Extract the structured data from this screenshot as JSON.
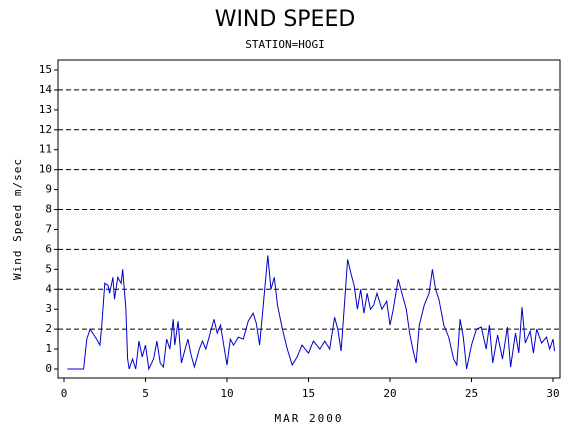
{
  "chart_data": {
    "type": "line",
    "title": "WIND SPEED",
    "subtitle": "STATION=HOGI",
    "x_label": "MAR 2000",
    "y_label": "Wind Speed m/sec",
    "xlim": [
      0,
      30
    ],
    "xticks": [
      0,
      5,
      10,
      15,
      20,
      25,
      30
    ],
    "ylim": [
      0,
      15
    ],
    "yticks": [
      0,
      1,
      2,
      3,
      4,
      5,
      6,
      7,
      8,
      9,
      10,
      11,
      12,
      13,
      14,
      15
    ],
    "grid_lines": [
      2,
      4,
      6,
      8,
      10,
      12,
      14
    ],
    "series": [
      {
        "color": "#0000cc",
        "x": [
          0.2,
          1.2,
          1.4,
          1.6,
          2.0,
          2.2,
          2.3,
          2.5,
          2.7,
          2.8,
          3.0,
          3.1,
          3.3,
          3.5,
          3.6,
          3.8,
          3.9,
          4.0,
          4.2,
          4.4,
          4.6,
          4.8,
          5.0,
          5.2,
          5.5,
          5.7,
          5.9,
          6.1,
          6.3,
          6.5,
          6.7,
          6.8,
          7.0,
          7.2,
          7.4,
          7.6,
          7.8,
          8.0,
          8.3,
          8.5,
          8.7,
          8.9,
          9.2,
          9.4,
          9.6,
          9.8,
          10.0,
          10.2,
          10.4,
          10.7,
          11.0,
          11.3,
          11.6,
          11.8,
          12.0,
          12.2,
          12.5,
          12.7,
          12.9,
          13.1,
          13.4,
          13.7,
          14.0,
          14.3,
          14.6,
          15.0,
          15.3,
          15.7,
          16.0,
          16.3,
          16.6,
          16.8,
          17.0,
          17.2,
          17.4,
          17.6,
          17.8,
          18.0,
          18.2,
          18.4,
          18.6,
          18.8,
          19.0,
          19.2,
          19.5,
          19.8,
          20.0,
          20.2,
          20.5,
          20.8,
          21.0,
          21.2,
          21.4,
          21.6,
          21.8,
          22.1,
          22.4,
          22.6,
          22.8,
          23.0,
          23.3,
          23.6,
          23.9,
          24.1,
          24.3,
          24.5,
          24.7,
          25.0,
          25.3,
          25.6,
          25.9,
          26.1,
          26.3,
          26.6,
          26.9,
          27.2,
          27.4,
          27.7,
          27.9,
          28.1,
          28.3,
          28.6,
          28.8,
          29.0,
          29.3,
          29.6,
          29.8,
          30.0,
          30.1
        ],
        "values": [
          0,
          0,
          1.5,
          2,
          1.5,
          1.2,
          2.0,
          4.3,
          4.2,
          3.8,
          4.6,
          3.5,
          4.6,
          4.3,
          5.0,
          3.0,
          0.5,
          0,
          0.5,
          0,
          1.4,
          0.6,
          1.2,
          0,
          0.5,
          1.4,
          0.3,
          0.1,
          1.5,
          1.0,
          2.5,
          1.2,
          2.4,
          0.3,
          0.9,
          1.5,
          0.7,
          0.1,
          1.0,
          1.4,
          1.0,
          1.6,
          2.5,
          1.8,
          2.2,
          1.2,
          0.2,
          1.5,
          1.2,
          1.6,
          1.5,
          2.4,
          2.8,
          2.3,
          1.2,
          3.0,
          5.7,
          4.0,
          4.6,
          3.2,
          2.0,
          1.0,
          0.2,
          0.6,
          1.2,
          0.8,
          1.4,
          1.0,
          1.4,
          1.0,
          2.6,
          2.0,
          0.9,
          3.2,
          5.5,
          4.8,
          4.2,
          3.0,
          4.0,
          2.8,
          3.8,
          3.0,
          3.2,
          3.8,
          3.0,
          3.4,
          2.2,
          3.0,
          4.5,
          3.6,
          3.0,
          1.8,
          1.0,
          0.3,
          2.2,
          3.2,
          3.8,
          5.0,
          4.0,
          3.5,
          2.2,
          1.6,
          0.5,
          0.2,
          2.5,
          1.6,
          0,
          1.2,
          2.0,
          2.1,
          1.0,
          2.2,
          0.3,
          1.7,
          0.5,
          2.1,
          0.1,
          1.8,
          0.8,
          3.1,
          1.3,
          1.9,
          0.8,
          2.0,
          1.3,
          1.6,
          1.0,
          1.5,
          0.9
        ]
      }
    ]
  }
}
